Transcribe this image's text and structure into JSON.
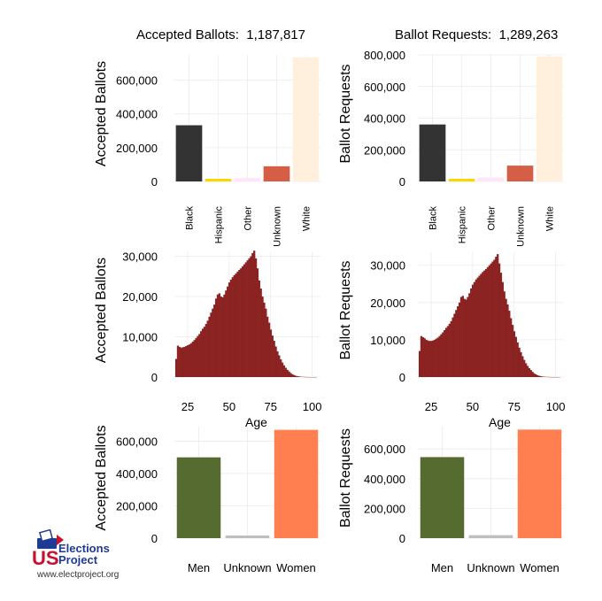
{
  "header": {
    "left_label": "Accepted Ballots:",
    "left_value": "1,187,817",
    "right_label": "Ballot Requests:",
    "right_value": "1,289,263"
  },
  "logo": {
    "us": "US",
    "elections": "Elections",
    "project": "Project",
    "url": "www.electproject.org"
  },
  "colors": {
    "black": "#333333",
    "hispanic": "#FFD700",
    "other": "#FFE4FA",
    "unknown_race": "#D45F46",
    "white": "#FFEFDC",
    "age": "#8B2323",
    "men": "#556B2F",
    "unknown_gender": "#BEBEBE",
    "women": "#FF7F50",
    "grid": "#EBEBEB",
    "logo_red": "#C8102E",
    "logo_blue": "#1F3A93"
  },
  "chart_data": [
    {
      "id": "race-accepted",
      "type": "bar",
      "ylabel": "Accepted Ballots",
      "ylim": [
        0,
        750000
      ],
      "yticks": [
        0,
        200000,
        400000,
        600000
      ],
      "yticklabels": [
        "0",
        "200,000",
        "400,000",
        "600,000"
      ],
      "categories": [
        "Black",
        "Hispanic",
        "Other",
        "Unknown",
        "White"
      ],
      "values": [
        333000,
        15000,
        20000,
        90000,
        735000
      ],
      "colors": [
        "#333333",
        "#FFD700",
        "#FFE4FA",
        "#D45F46",
        "#FFEFDC"
      ]
    },
    {
      "id": "race-requests",
      "type": "bar",
      "ylabel": "Ballot Requests",
      "ylim": [
        0,
        800000
      ],
      "yticks": [
        0,
        200000,
        400000,
        600000,
        800000
      ],
      "yticklabels": [
        "0",
        "200,000",
        "400,000",
        "600,000",
        "800,000"
      ],
      "categories": [
        "Black",
        "Hispanic",
        "Other",
        "Unknown",
        "White"
      ],
      "values": [
        360000,
        15000,
        25000,
        100000,
        790000
      ],
      "colors": [
        "#333333",
        "#FFD700",
        "#FFE4FA",
        "#D45F46",
        "#FFEFDC"
      ]
    },
    {
      "id": "age-accepted",
      "type": "histogram",
      "ylabel": "Accepted Ballots",
      "xlabel": "Age",
      "xlim": [
        17,
        105
      ],
      "ylim": [
        0,
        31000
      ],
      "xticks": [
        25,
        50,
        75,
        100
      ],
      "xticklabels": [
        "25",
        "50",
        "75",
        "100"
      ],
      "yticks": [
        0,
        10000,
        20000,
        30000
      ],
      "yticklabels": [
        "0",
        "10,000",
        "20,000",
        "30,000"
      ],
      "x": [
        18,
        19,
        20,
        21,
        22,
        23,
        24,
        25,
        26,
        27,
        28,
        29,
        30,
        31,
        32,
        33,
        34,
        35,
        36,
        37,
        38,
        39,
        40,
        41,
        42,
        43,
        44,
        45,
        46,
        47,
        48,
        49,
        50,
        51,
        52,
        53,
        54,
        55,
        56,
        57,
        58,
        59,
        60,
        61,
        62,
        63,
        64,
        65,
        66,
        67,
        68,
        69,
        70,
        71,
        72,
        73,
        74,
        75,
        76,
        77,
        78,
        79,
        80,
        81,
        82,
        83,
        84,
        85,
        86,
        87,
        88,
        89,
        90,
        91,
        92,
        93,
        94,
        95,
        96,
        97,
        98,
        99,
        100,
        101,
        102
      ],
      "values": [
        4500,
        7800,
        7500,
        7300,
        7400,
        7500,
        7700,
        7900,
        8100,
        8400,
        8800,
        9200,
        9700,
        10200,
        10700,
        11400,
        12000,
        12500,
        13200,
        14000,
        15000,
        16000,
        17000,
        18000,
        19500,
        20500,
        20800,
        20000,
        19800,
        20500,
        21500,
        22500,
        23500,
        24200,
        24800,
        25300,
        25700,
        26200,
        26600,
        27000,
        27500,
        28000,
        28500,
        29000,
        29500,
        30000,
        30800,
        31400,
        29500,
        27000,
        24000,
        22000,
        20000,
        18500,
        17000,
        15000,
        13500,
        11800,
        10300,
        9000,
        7600,
        6400,
        5400,
        4400,
        3600,
        2900,
        2300,
        1800,
        1400,
        1000,
        700,
        500,
        330,
        220,
        150,
        90,
        60,
        40,
        25,
        15,
        10,
        6,
        4,
        2,
        1
      ],
      "color": "#8B2323"
    },
    {
      "id": "age-requests",
      "type": "histogram",
      "ylabel": "Ballot Requests",
      "xlabel": "Age",
      "xlim": [
        17,
        105
      ],
      "ylim": [
        0,
        33500
      ],
      "xticks": [
        25,
        50,
        75,
        100
      ],
      "xticklabels": [
        "25",
        "50",
        "75",
        "100"
      ],
      "yticks": [
        0,
        10000,
        20000,
        30000
      ],
      "yticklabels": [
        "0",
        "10,000",
        "20,000",
        "30,000"
      ],
      "x": [
        18,
        19,
        20,
        21,
        22,
        23,
        24,
        25,
        26,
        27,
        28,
        29,
        30,
        31,
        32,
        33,
        34,
        35,
        36,
        37,
        38,
        39,
        40,
        41,
        42,
        43,
        44,
        45,
        46,
        47,
        48,
        49,
        50,
        51,
        52,
        53,
        54,
        55,
        56,
        57,
        58,
        59,
        60,
        61,
        62,
        63,
        64,
        65,
        66,
        67,
        68,
        69,
        70,
        71,
        72,
        73,
        74,
        75,
        76,
        77,
        78,
        79,
        80,
        81,
        82,
        83,
        84,
        85,
        86,
        87,
        88,
        89,
        90,
        91,
        92,
        93,
        94,
        95,
        96,
        97,
        98,
        99,
        100,
        101,
        102
      ],
      "values": [
        7000,
        11000,
        10700,
        10400,
        10000,
        9800,
        9700,
        9700,
        9800,
        10000,
        10300,
        10600,
        11000,
        11500,
        12000,
        12600,
        13200,
        13700,
        14300,
        15000,
        16000,
        17000,
        18000,
        19000,
        20000,
        21500,
        21800,
        21000,
        20800,
        21500,
        22500,
        23800,
        24800,
        25500,
        26200,
        26700,
        27200,
        27700,
        28200,
        28600,
        29000,
        29500,
        30000,
        30500,
        31000,
        31500,
        32300,
        33000,
        30500,
        28000,
        25500,
        23000,
        21000,
        19500,
        17800,
        15800,
        14000,
        12300,
        10800,
        9300,
        7900,
        6700,
        5600,
        4600,
        3700,
        3000,
        2400,
        1900,
        1400,
        1000,
        720,
        500,
        340,
        230,
        150,
        95,
        60,
        40,
        25,
        15,
        10,
        6,
        4,
        2,
        1
      ],
      "color": "#8B2323"
    },
    {
      "id": "gender-accepted",
      "type": "bar",
      "ylabel": "Accepted Ballots",
      "ylim": [
        0,
        690000
      ],
      "yticks": [
        0,
        200000,
        400000,
        600000
      ],
      "yticklabels": [
        "0",
        "200,000",
        "400,000",
        "600,000"
      ],
      "categories": [
        "Men",
        "Unknown",
        "Women"
      ],
      "values": [
        500000,
        15000,
        670000
      ],
      "colors": [
        "#556B2F",
        "#BEBEBE",
        "#FF7F50"
      ]
    },
    {
      "id": "gender-requests",
      "type": "bar",
      "ylabel": "Ballot Requests",
      "ylim": [
        0,
        750000
      ],
      "yticks": [
        0,
        200000,
        400000,
        600000
      ],
      "yticklabels": [
        "0",
        "200,000",
        "400,000",
        "600,000"
      ],
      "categories": [
        "Men",
        "Unknown",
        "Women"
      ],
      "values": [
        545000,
        20000,
        730000
      ],
      "colors": [
        "#556B2F",
        "#BEBEBE",
        "#FF7F50"
      ]
    }
  ]
}
